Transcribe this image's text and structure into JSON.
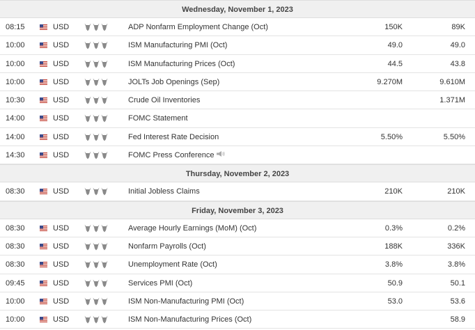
{
  "days": [
    {
      "label": "Wednesday, November 1, 2023",
      "events": [
        {
          "time": "08:15",
          "currency": "USD",
          "event": "ADP Nonfarm Employment Change (Oct)",
          "actual": "150K",
          "forecast": "89K",
          "speech": false
        },
        {
          "time": "10:00",
          "currency": "USD",
          "event": "ISM Manufacturing PMI (Oct)",
          "actual": "49.0",
          "forecast": "49.0",
          "speech": false
        },
        {
          "time": "10:00",
          "currency": "USD",
          "event": "ISM Manufacturing Prices (Oct)",
          "actual": "44.5",
          "forecast": "43.8",
          "speech": false
        },
        {
          "time": "10:00",
          "currency": "USD",
          "event": "JOLTs Job Openings (Sep)",
          "actual": "9.270M",
          "forecast": "9.610M",
          "speech": false
        },
        {
          "time": "10:30",
          "currency": "USD",
          "event": "Crude Oil Inventories",
          "actual": "",
          "forecast": "1.371M",
          "speech": false
        },
        {
          "time": "14:00",
          "currency": "USD",
          "event": "FOMC Statement",
          "actual": "",
          "forecast": "",
          "speech": false
        },
        {
          "time": "14:00",
          "currency": "USD",
          "event": "Fed Interest Rate Decision",
          "actual": "5.50%",
          "forecast": "5.50%",
          "speech": false
        },
        {
          "time": "14:30",
          "currency": "USD",
          "event": "FOMC Press Conference",
          "actual": "",
          "forecast": "",
          "speech": true
        }
      ]
    },
    {
      "label": "Thursday, November 2, 2023",
      "events": [
        {
          "time": "08:30",
          "currency": "USD",
          "event": "Initial Jobless Claims",
          "actual": "210K",
          "forecast": "210K",
          "speech": false
        }
      ]
    },
    {
      "label": "Friday, November 3, 2023",
      "events": [
        {
          "time": "08:30",
          "currency": "USD",
          "event": "Average Hourly Earnings (MoM) (Oct)",
          "actual": "0.3%",
          "forecast": "0.2%",
          "speech": false
        },
        {
          "time": "08:30",
          "currency": "USD",
          "event": "Nonfarm Payrolls (Oct)",
          "actual": "188K",
          "forecast": "336K",
          "speech": false
        },
        {
          "time": "08:30",
          "currency": "USD",
          "event": "Unemployment Rate (Oct)",
          "actual": "3.8%",
          "forecast": "3.8%",
          "speech": false
        },
        {
          "time": "09:45",
          "currency": "USD",
          "event": "Services PMI (Oct)",
          "actual": "50.9",
          "forecast": "50.1",
          "speech": false
        },
        {
          "time": "10:00",
          "currency": "USD",
          "event": "ISM Non-Manufacturing PMI (Oct)",
          "actual": "53.0",
          "forecast": "53.6",
          "speech": false
        },
        {
          "time": "10:00",
          "currency": "USD",
          "event": "ISM Non-Manufacturing Prices (Oct)",
          "actual": "",
          "forecast": "58.9",
          "speech": false
        }
      ]
    }
  ],
  "importance_icon": "bull-icon",
  "importance_level": 3,
  "flag_icon": "us-flag-icon",
  "speech_icon": "speaker-icon",
  "colors": {
    "day_header_bg": "#f0f0f0",
    "row_border": "#e3e3e3",
    "text": "#333333",
    "icon": "#8a8a8a"
  }
}
